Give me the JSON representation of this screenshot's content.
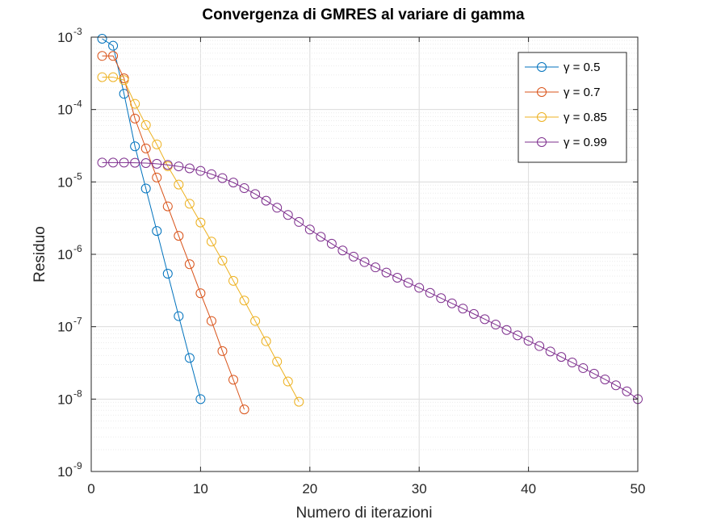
{
  "chart_data": {
    "type": "line",
    "title": "Convergenza di GMRES al variare di gamma",
    "xlabel": "Numero di iterazioni",
    "ylabel": "Residuo",
    "xlim": [
      0,
      50
    ],
    "ylim": [
      1e-09,
      0.001
    ],
    "yscale": "log",
    "grid": true,
    "legend_position": "top-right",
    "x_ticks": [
      "0",
      "10",
      "20",
      "30",
      "40",
      "50"
    ],
    "y_ticks": [
      {
        "base": "10",
        "exp": "-9"
      },
      {
        "base": "10",
        "exp": "-8"
      },
      {
        "base": "10",
        "exp": "-7"
      },
      {
        "base": "10",
        "exp": "-6"
      },
      {
        "base": "10",
        "exp": "-5"
      },
      {
        "base": "10",
        "exp": "-4"
      },
      {
        "base": "10",
        "exp": "-3"
      }
    ],
    "series": [
      {
        "name": "γ = 0.5",
        "color": "#0072BD",
        "x": [
          1,
          2,
          3,
          4,
          5,
          6,
          7,
          8,
          9,
          10
        ],
        "y": [
          0.00095,
          0.00076,
          0.000165,
          3.1e-05,
          8.1e-06,
          2.1e-06,
          5.4e-07,
          1.4e-07,
          3.7e-08,
          1e-08
        ]
      },
      {
        "name": "γ = 0.7",
        "color": "#D95319",
        "x": [
          1,
          2,
          3,
          4,
          5,
          6,
          7,
          8,
          9,
          10,
          11,
          12,
          13,
          14
        ],
        "y": [
          0.00055,
          0.00055,
          0.00027,
          7.5e-05,
          2.9e-05,
          1.15e-05,
          4.6e-06,
          1.8e-06,
          7.3e-07,
          2.9e-07,
          1.2e-07,
          4.6e-08,
          1.85e-08,
          7.2e-09
        ]
      },
      {
        "name": "γ = 0.85",
        "color": "#EDB120",
        "x": [
          1,
          2,
          3,
          4,
          5,
          6,
          7,
          8,
          9,
          10,
          11,
          12,
          13,
          14,
          15,
          16,
          17,
          18,
          19
        ],
        "y": [
          0.00028,
          0.00028,
          0.000255,
          0.00012,
          6.1e-05,
          3.3e-05,
          1.65e-05,
          9.2e-06,
          5e-06,
          2.75e-06,
          1.5e-06,
          8.2e-07,
          4.3e-07,
          2.3e-07,
          1.2e-07,
          6.3e-08,
          3.3e-08,
          1.75e-08,
          9.2e-09
        ]
      },
      {
        "name": "γ = 0.99",
        "color": "#7E2F8E",
        "x": [
          1,
          2,
          3,
          4,
          5,
          6,
          7,
          8,
          9,
          10,
          11,
          12,
          13,
          14,
          15,
          16,
          17,
          18,
          19,
          20,
          21,
          22,
          23,
          24,
          25,
          26,
          27,
          28,
          29,
          30,
          31,
          32,
          33,
          34,
          35,
          36,
          37,
          38,
          39,
          40,
          41,
          42,
          43,
          44,
          45,
          46,
          47,
          48,
          49,
          50
        ],
        "y": [
          1.85e-05,
          1.85e-05,
          1.85e-05,
          1.84e-05,
          1.82e-05,
          1.78e-05,
          1.72e-05,
          1.64e-05,
          1.54e-05,
          1.42e-05,
          1.28e-05,
          1.13e-05,
          9.8e-06,
          8.2e-06,
          6.8e-06,
          5.5e-06,
          4.4e-06,
          3.5e-06,
          2.8e-06,
          2.2e-06,
          1.75e-06,
          1.4e-06,
          1.13e-06,
          9.3e-07,
          7.8e-07,
          6.6e-07,
          5.6e-07,
          4.75e-07,
          4.05e-07,
          3.45e-07,
          2.93e-07,
          2.48e-07,
          2.1e-07,
          1.78e-07,
          1.5e-07,
          1.27e-07,
          1.07e-07,
          9e-08,
          7.6e-08,
          6.4e-08,
          5.4e-08,
          4.55e-08,
          3.82e-08,
          3.2e-08,
          2.68e-08,
          2.24e-08,
          1.87e-08,
          1.55e-08,
          1.28e-08,
          1e-08
        ]
      }
    ]
  }
}
